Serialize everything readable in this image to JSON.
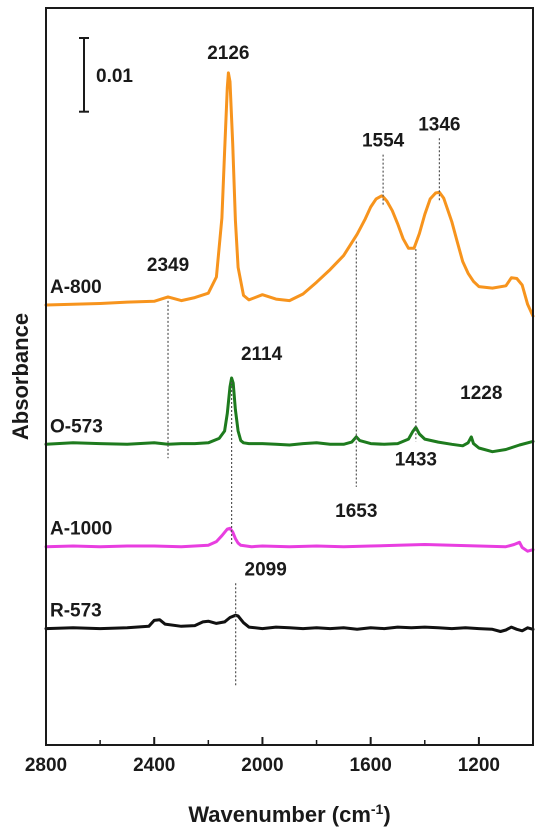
{
  "chart_data": {
    "type": "line",
    "title": "",
    "xlabel": "Wavenumber (cm",
    "xlabel_sup": "-1",
    "xlabel_suffix": ")",
    "ylabel": "Absorbance",
    "xlim": [
      2800,
      1000
    ],
    "x_reversed": true,
    "x_ticks": [
      2800,
      2400,
      2000,
      1600,
      1200
    ],
    "ylim": [
      -0.02,
      0.08
    ],
    "grid": false,
    "legend": "none",
    "scale_bar": {
      "label": "0.01",
      "value": 0.01
    },
    "series": [
      {
        "name": "A-800",
        "color": "#F7941D",
        "x": [
          2800,
          2700,
          2600,
          2500,
          2400,
          2349,
          2300,
          2250,
          2200,
          2170,
          2150,
          2140,
          2130,
          2126,
          2120,
          2110,
          2100,
          2090,
          2070,
          2050,
          2000,
          1950,
          1900,
          1850,
          1800,
          1750,
          1700,
          1650,
          1620,
          1600,
          1580,
          1560,
          1554,
          1540,
          1520,
          1500,
          1480,
          1460,
          1440,
          1420,
          1400,
          1380,
          1360,
          1346,
          1330,
          1300,
          1280,
          1260,
          1240,
          1220,
          1200,
          1150,
          1100,
          1080,
          1060,
          1040,
          1020,
          1000
        ],
        "y": [
          0.0397,
          0.0398,
          0.0399,
          0.0401,
          0.0402,
          0.0408,
          0.0403,
          0.0407,
          0.0413,
          0.0435,
          0.0515,
          0.0605,
          0.0692,
          0.0712,
          0.07,
          0.0616,
          0.0512,
          0.0448,
          0.041,
          0.0404,
          0.0411,
          0.0405,
          0.0403,
          0.0412,
          0.0428,
          0.0445,
          0.0464,
          0.0493,
          0.0514,
          0.053,
          0.0541,
          0.0545,
          0.0544,
          0.0538,
          0.0525,
          0.0507,
          0.0487,
          0.0474,
          0.0474,
          0.0494,
          0.052,
          0.0541,
          0.0549,
          0.055,
          0.0542,
          0.051,
          0.0483,
          0.0456,
          0.044,
          0.0429,
          0.0422,
          0.042,
          0.0423,
          0.0434,
          0.0433,
          0.0424,
          0.0398,
          0.0382
        ]
      },
      {
        "name": "O-573",
        "color": "#1E7B1E",
        "x": [
          2800,
          2700,
          2600,
          2500,
          2400,
          2349,
          2300,
          2250,
          2200,
          2160,
          2140,
          2130,
          2120,
          2114,
          2108,
          2100,
          2090,
          2080,
          2070,
          2050,
          2000,
          1950,
          1900,
          1850,
          1800,
          1750,
          1700,
          1670,
          1653,
          1640,
          1600,
          1550,
          1500,
          1460,
          1445,
          1433,
          1420,
          1400,
          1350,
          1300,
          1260,
          1240,
          1228,
          1220,
          1200,
          1150,
          1100,
          1050,
          1000
        ],
        "y": [
          0.0208,
          0.021,
          0.0209,
          0.0208,
          0.021,
          0.0208,
          0.0209,
          0.0209,
          0.021,
          0.0216,
          0.0226,
          0.025,
          0.0286,
          0.0298,
          0.0291,
          0.0255,
          0.0226,
          0.0213,
          0.021,
          0.0209,
          0.0209,
          0.0208,
          0.0207,
          0.0209,
          0.021,
          0.0208,
          0.0208,
          0.0211,
          0.0218,
          0.0213,
          0.0209,
          0.0208,
          0.0209,
          0.0215,
          0.0225,
          0.0231,
          0.0222,
          0.0215,
          0.0211,
          0.0208,
          0.0206,
          0.021,
          0.0218,
          0.0209,
          0.0203,
          0.0198,
          0.0201,
          0.0207,
          0.0212
        ]
      },
      {
        "name": "A-1000",
        "color": "#E83EE0",
        "x": [
          2800,
          2700,
          2600,
          2500,
          2400,
          2300,
          2250,
          2200,
          2170,
          2150,
          2130,
          2120,
          2110,
          2100,
          2090,
          2080,
          2060,
          2040,
          2000,
          1900,
          1800,
          1700,
          1600,
          1500,
          1400,
          1300,
          1200,
          1100,
          1070,
          1050,
          1040,
          1020,
          1000
        ],
        "y": [
          0.0069,
          0.007,
          0.0069,
          0.007,
          0.007,
          0.0069,
          0.007,
          0.0071,
          0.0076,
          0.0084,
          0.0093,
          0.0094,
          0.0089,
          0.008,
          0.0074,
          0.0071,
          0.007,
          0.0069,
          0.007,
          0.0069,
          0.007,
          0.0069,
          0.007,
          0.0071,
          0.0072,
          0.0071,
          0.007,
          0.0069,
          0.0072,
          0.0075,
          0.0068,
          0.0063,
          0.0065
        ]
      },
      {
        "name": "R-573",
        "color": "#111111",
        "x": [
          2800,
          2700,
          2600,
          2500,
          2420,
          2400,
          2380,
          2360,
          2300,
          2250,
          2220,
          2200,
          2170,
          2140,
          2120,
          2100,
          2099,
          2090,
          2070,
          2050,
          2000,
          1950,
          1900,
          1850,
          1800,
          1750,
          1700,
          1650,
          1600,
          1550,
          1500,
          1450,
          1400,
          1350,
          1300,
          1250,
          1200,
          1150,
          1120,
          1100,
          1080,
          1060,
          1040,
          1020,
          1000
        ],
        "y": [
          -0.0042,
          -0.0041,
          -0.0042,
          -0.0041,
          -0.0039,
          -0.0031,
          -0.003,
          -0.0036,
          -0.0039,
          -0.0038,
          -0.0033,
          -0.0032,
          -0.0035,
          -0.0033,
          -0.0027,
          -0.0024,
          -0.0024,
          -0.0025,
          -0.0034,
          -0.004,
          -0.0042,
          -0.004,
          -0.0041,
          -0.0042,
          -0.0041,
          -0.0042,
          -0.0041,
          -0.0043,
          -0.0041,
          -0.0042,
          -0.004,
          -0.0041,
          -0.004,
          -0.0041,
          -0.0042,
          -0.0041,
          -0.0042,
          -0.0043,
          -0.0046,
          -0.0044,
          -0.004,
          -0.0043,
          -0.0045,
          -0.0041,
          -0.0043
        ]
      }
    ],
    "annotations": [
      {
        "text": "2126",
        "x": 2126,
        "series": "A-800",
        "line": false
      },
      {
        "text": "2349",
        "x": 2349,
        "series": "A-800",
        "line": true,
        "line_to": "O-573"
      },
      {
        "text": "1554",
        "x": 1554,
        "series": "A-800",
        "line": true
      },
      {
        "text": "1346",
        "x": 1346,
        "series": "A-800",
        "line": true
      },
      {
        "text": "2114",
        "x": 2114,
        "series": "O-573",
        "line": true,
        "line_to": "A-1000"
      },
      {
        "text": "1653",
        "x": 1653,
        "series": "O-573",
        "line": true,
        "from": "A-800"
      },
      {
        "text": "1433",
        "x": 1433,
        "series": "O-573",
        "line": true,
        "from": "A-800"
      },
      {
        "text": "1228",
        "x": 1228,
        "series": "O-573",
        "line": false
      },
      {
        "text": "2099",
        "x": 2099,
        "series": "R-573",
        "line": true
      }
    ]
  }
}
